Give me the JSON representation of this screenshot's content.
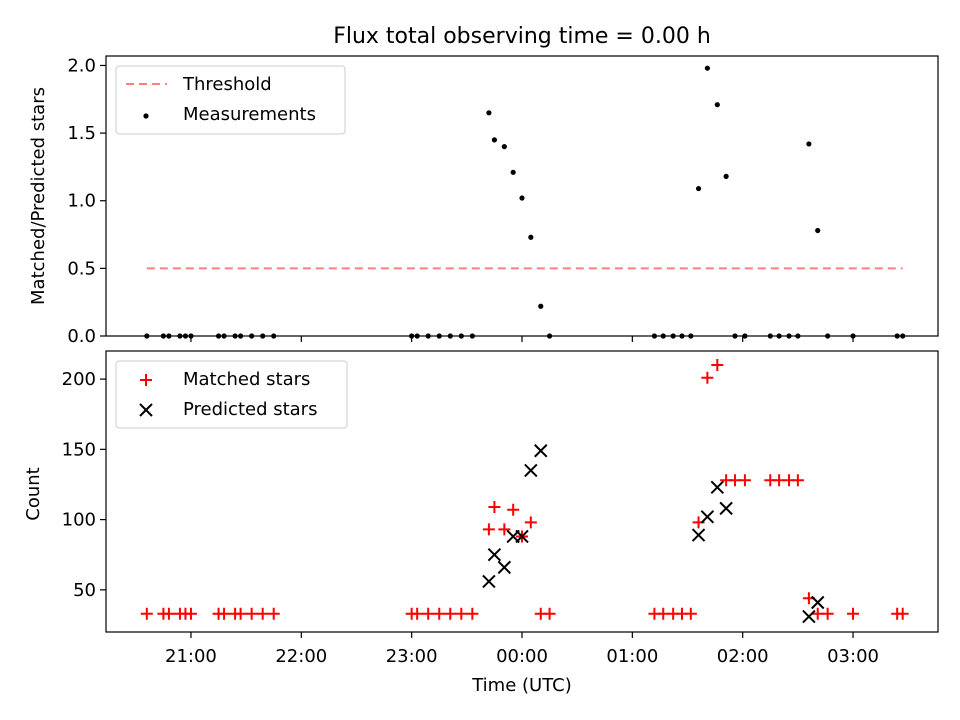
{
  "figure": {
    "title": "Flux total observing time = 0.00 h",
    "shared_xlabel": "Time (UTC)",
    "x_tick_labels": [
      "21:00",
      "22:00",
      "23:00",
      "00:00",
      "01:00",
      "02:00",
      "03:00"
    ]
  },
  "chart_data": [
    {
      "type": "scatter",
      "title": "Flux total observing time = 0.00 h",
      "ylabel": "Matched/Predicted stars",
      "xlabel": "",
      "x_unit": "time of day (UTC), hours relative to 00:00",
      "xlim": [
        -3.77,
        3.77
      ],
      "ylim": [
        0,
        2.07
      ],
      "yticks": [
        0.0,
        0.5,
        1.0,
        1.5,
        2.0
      ],
      "ytick_labels": [
        "0.0",
        "0.5",
        "1.0",
        "1.5",
        "2.0"
      ],
      "legend": {
        "position": "top-left",
        "entries": [
          "Threshold",
          "Measurements"
        ]
      },
      "threshold": {
        "name": "Threshold",
        "value": 0.5,
        "x_range": [
          -3.4,
          3.45
        ],
        "color": "#ff7f7f",
        "style": "dashed"
      },
      "series": [
        {
          "name": "Measurements",
          "marker": "dot",
          "color": "#000000",
          "x": [
            -3.4,
            -3.25,
            -3.2,
            -3.1,
            -3.05,
            -3.0,
            -2.75,
            -2.7,
            -2.6,
            -2.55,
            -2.45,
            -2.35,
            -2.25,
            -1.0,
            -0.95,
            -0.85,
            -0.75,
            -0.65,
            -0.55,
            -0.45,
            -0.3,
            -0.25,
            -0.16,
            -0.08,
            0.0,
            0.08,
            0.17,
            0.25,
            1.2,
            1.28,
            1.37,
            1.45,
            1.53,
            1.6,
            1.68,
            1.77,
            1.85,
            1.93,
            2.02,
            2.25,
            2.33,
            2.42,
            2.5,
            2.6,
            2.68,
            2.77,
            3.0,
            3.4,
            3.45
          ],
          "y": [
            0,
            0,
            0,
            0,
            0,
            0,
            0,
            0,
            0,
            0,
            0,
            0,
            0,
            0,
            0,
            0,
            0,
            0,
            0,
            0,
            1.65,
            1.45,
            1.4,
            1.21,
            1.02,
            0.73,
            0.22,
            0,
            0,
            0,
            0,
            0,
            0,
            1.09,
            1.98,
            1.71,
            1.18,
            0,
            0,
            0,
            0,
            0,
            0,
            1.42,
            0.78,
            0,
            0,
            0,
            0
          ]
        }
      ]
    },
    {
      "type": "scatter",
      "ylabel": "Count",
      "xlabel": "Time (UTC)",
      "x_unit": "time of day (UTC), hours relative to 00:00",
      "xlim": [
        -3.77,
        3.77
      ],
      "ylim": [
        20,
        220
      ],
      "yticks": [
        50,
        100,
        150,
        200
      ],
      "ytick_labels": [
        "50",
        "100",
        "150",
        "200"
      ],
      "x_tick_labels": [
        "21:00",
        "22:00",
        "23:00",
        "00:00",
        "01:00",
        "02:00",
        "03:00"
      ],
      "legend": {
        "position": "top-left",
        "entries": [
          "Matched stars",
          "Predicted stars"
        ]
      },
      "series": [
        {
          "name": "Matched stars",
          "marker": "plus",
          "color": "#ff0000",
          "x": [
            -3.4,
            -3.25,
            -3.2,
            -3.1,
            -3.05,
            -3.0,
            -2.75,
            -2.7,
            -2.6,
            -2.55,
            -2.45,
            -2.35,
            -2.25,
            -1.0,
            -0.95,
            -0.85,
            -0.75,
            -0.65,
            -0.55,
            -0.45,
            -0.3,
            -0.25,
            -0.16,
            -0.08,
            0.0,
            0.08,
            0.17,
            0.25,
            1.2,
            1.28,
            1.37,
            1.45,
            1.53,
            1.6,
            1.68,
            1.77,
            1.85,
            1.93,
            2.02,
            2.25,
            2.33,
            2.42,
            2.5,
            2.6,
            2.68,
            2.77,
            3.0,
            3.4,
            3.45
          ],
          "y": [
            33,
            33,
            33,
            33,
            33,
            33,
            33,
            33,
            33,
            33,
            33,
            33,
            33,
            33,
            33,
            33,
            33,
            33,
            33,
            33,
            93,
            109,
            93,
            107,
            88,
            98,
            33,
            33,
            33,
            33,
            33,
            33,
            33,
            98,
            201,
            210,
            128,
            128,
            128,
            128,
            128,
            128,
            128,
            44,
            33,
            33,
            33,
            33,
            33
          ]
        },
        {
          "name": "Predicted stars",
          "marker": "x",
          "color": "#000000",
          "x": [
            -0.3,
            -0.25,
            -0.16,
            -0.08,
            0.0,
            0.08,
            0.17,
            1.6,
            1.68,
            1.77,
            1.85,
            2.6,
            2.68
          ],
          "y": [
            56,
            75,
            66,
            88,
            88,
            135,
            149,
            89,
            102,
            123,
            108,
            31,
            41
          ]
        }
      ]
    }
  ]
}
